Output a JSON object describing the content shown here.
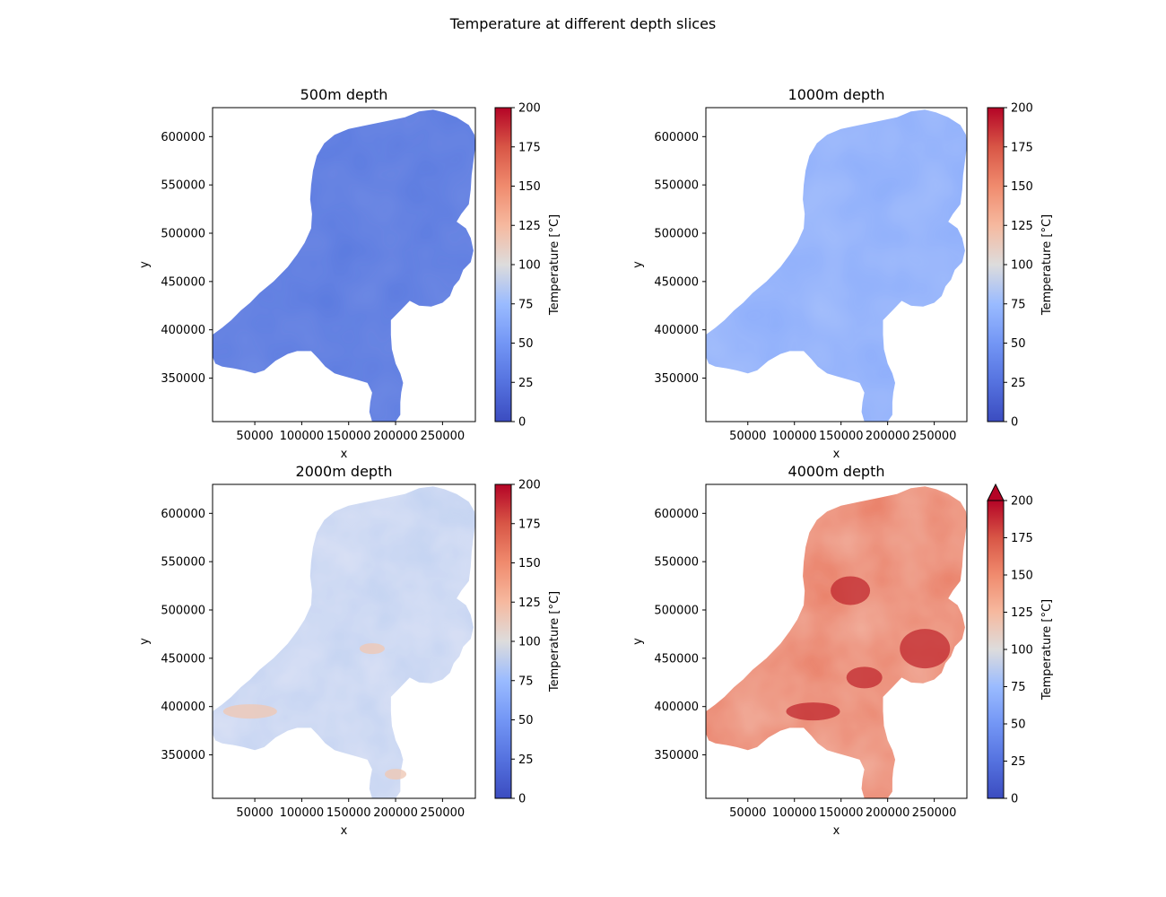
{
  "figure": {
    "suptitle": "Temperature at different depth slices"
  },
  "chart_data": [
    {
      "type": "heatmap",
      "title": "500m depth",
      "xlabel": "x",
      "ylabel": "y",
      "xlim": [
        5000,
        285000
      ],
      "ylim": [
        305000,
        630000
      ],
      "xticks": [
        50000,
        100000,
        150000,
        200000,
        250000
      ],
      "yticks": [
        350000,
        400000,
        450000,
        500000,
        550000,
        600000
      ],
      "colorbar": {
        "label": "Temperature [°C]",
        "cmap": "coolwarm",
        "vmin": 0,
        "vmax": 200,
        "ticks": [
          0,
          25,
          50,
          75,
          100,
          125,
          150,
          175,
          200
        ],
        "extend_max": false
      },
      "approx_value_range": [
        25,
        40
      ],
      "dominant_color": "#5a79e0"
    },
    {
      "type": "heatmap",
      "title": "1000m depth",
      "xlabel": "x",
      "ylabel": "y",
      "xlim": [
        5000,
        285000
      ],
      "ylim": [
        305000,
        630000
      ],
      "xticks": [
        50000,
        100000,
        150000,
        200000,
        250000
      ],
      "yticks": [
        350000,
        400000,
        450000,
        500000,
        550000,
        600000
      ],
      "colorbar": {
        "label": "Temperature [°C]",
        "cmap": "coolwarm",
        "vmin": 0,
        "vmax": 200,
        "ticks": [
          0,
          25,
          50,
          75,
          100,
          125,
          150,
          175,
          200
        ],
        "extend_max": false
      },
      "approx_value_range": [
        40,
        65
      ],
      "dominant_color": "#7d9ef4"
    },
    {
      "type": "heatmap",
      "title": "2000m depth",
      "xlabel": "x",
      "ylabel": "y",
      "xlim": [
        5000,
        285000
      ],
      "ylim": [
        305000,
        630000
      ],
      "xticks": [
        50000,
        100000,
        150000,
        200000,
        250000
      ],
      "yticks": [
        350000,
        400000,
        450000,
        500000,
        550000,
        600000
      ],
      "colorbar": {
        "label": "Temperature [°C]",
        "cmap": "coolwarm",
        "vmin": 0,
        "vmax": 200,
        "ticks": [
          0,
          25,
          50,
          75,
          100,
          125,
          150,
          175,
          200
        ],
        "extend_max": false
      },
      "approx_value_range": [
        65,
        125
      ],
      "dominant_color": "#b7cdf7"
    },
    {
      "type": "heatmap",
      "title": "4000m depth",
      "xlabel": "x",
      "ylabel": "y",
      "xlim": [
        5000,
        285000
      ],
      "ylim": [
        305000,
        630000
      ],
      "xticks": [
        50000,
        100000,
        150000,
        200000,
        250000
      ],
      "yticks": [
        350000,
        400000,
        450000,
        500000,
        550000,
        600000
      ],
      "colorbar": {
        "label": "Temperature [°C]",
        "cmap": "coolwarm",
        "vmin": 0,
        "vmax": 200,
        "ticks": [
          0,
          25,
          50,
          75,
          100,
          125,
          150,
          175,
          200
        ],
        "extend_max": true
      },
      "approx_value_range": [
        140,
        210
      ],
      "dominant_color": "#e7745b"
    }
  ]
}
